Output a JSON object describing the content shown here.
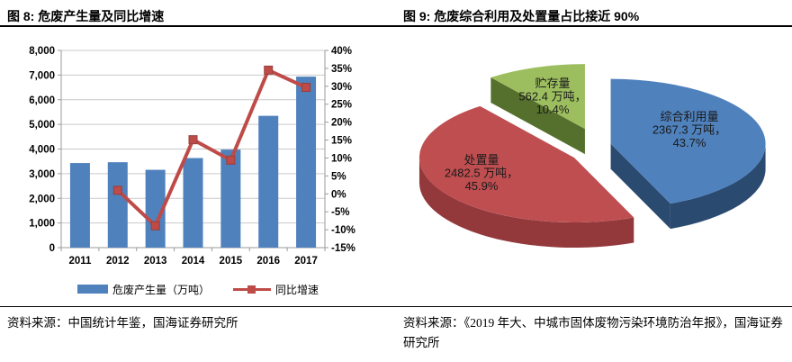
{
  "left_panel": {
    "title": "图 8: 危废产生量及同比增速",
    "source": "资料来源：中国统计年鉴，国海证券研究所"
  },
  "right_panel": {
    "title": "图 9: 危废综合利用及处置量占比接近 90%",
    "source": "资料来源：《2019 年大、中城市固体废物污染环境防治年报》，国海证券研究所"
  },
  "chart_data": [
    {
      "type": "bar",
      "subtype": "bar-line-combo",
      "title": "危废产生量及同比增速",
      "categories": [
        "2011",
        "2012",
        "2013",
        "2014",
        "2015",
        "2016",
        "2017"
      ],
      "series": [
        {
          "name": "危废产生量（万吨）",
          "type": "bar",
          "axis": "left",
          "color": "#4F81BD",
          "values": [
            3431,
            3465,
            3157,
            3634,
            3976,
            5347,
            6937
          ]
        },
        {
          "name": "同比增速",
          "type": "line",
          "axis": "right",
          "color": "#BE4B48",
          "marker": "square",
          "values": [
            null,
            1.0,
            -8.9,
            15.1,
            9.4,
            34.5,
            29.7
          ]
        }
      ],
      "left_axis": {
        "min": 0,
        "max": 8000,
        "step": 1000,
        "tick_labels": [
          "8,000",
          "7,000",
          "6,000",
          "5,000",
          "4,000",
          "3,000",
          "2,000",
          "1,000",
          "0"
        ]
      },
      "right_axis": {
        "min": -15,
        "max": 40,
        "step": 5,
        "tick_labels": [
          "40%",
          "35%",
          "30%",
          "25%",
          "20%",
          "15%",
          "10%",
          "5%",
          "0%",
          "-5%",
          "-10%",
          "-15%"
        ]
      },
      "grid": true,
      "legend_position": "bottom",
      "grid_color": "#C9C9C9",
      "axis_color": "#9B9B9B"
    },
    {
      "type": "pie",
      "style": "3d-exploded",
      "start_angle_deg": 0,
      "direction": "clockwise",
      "title": "危废综合利用及处置量占比接近 90%",
      "slices": [
        {
          "label": "综合利用量",
          "value": 2367.3,
          "unit": "万吨",
          "pct": 43.7,
          "color": "#4F81BD",
          "side_color": "#2B4A70",
          "label_lines": [
            "综合利用量",
            "2367.3 万吨，",
            "43.7%"
          ]
        },
        {
          "label": "处置量",
          "value": 2482.5,
          "unit": "万吨",
          "pct": 45.9,
          "color": "#BF4E51",
          "side_color": "#93393C",
          "label_lines": [
            "处置量",
            "2482.5 万吨，",
            "45.9%"
          ]
        },
        {
          "label": "贮存量",
          "value": 562.4,
          "unit": "万吨",
          "pct": 10.4,
          "color": "#9CBE5F",
          "side_color": "#55702D",
          "label_lines": [
            "贮存量",
            "562.4 万吨，",
            "10.4%"
          ]
        }
      ]
    }
  ]
}
